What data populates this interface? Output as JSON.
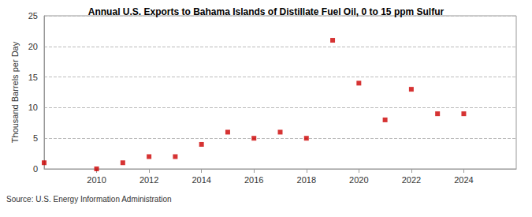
{
  "chart_data": {
    "type": "scatter",
    "title": "Annual U.S. Exports to Bahama Islands of Distillate Fuel Oil, 0 to 15 ppm Sulfur",
    "y_label": "Thousand Barrels per Day",
    "source": "Source: U.S. Energy Information Administration",
    "x": [
      2008,
      2010,
      2011,
      2012,
      2013,
      2014,
      2015,
      2016,
      2017,
      2018,
      2019,
      2020,
      2021,
      2022,
      2023,
      2024
    ],
    "values": [
      1,
      0,
      1,
      2,
      2,
      4,
      6,
      5,
      6,
      5,
      21,
      14,
      8,
      13,
      9,
      9
    ],
    "color": "#cc0000",
    "marker": "square",
    "xlim": [
      2008,
      2026
    ],
    "xticks": [
      2010,
      2012,
      2014,
      2016,
      2018,
      2020,
      2022,
      2024
    ],
    "ylim": [
      0,
      25
    ],
    "yticks": [
      0,
      5,
      10,
      15,
      20,
      25
    ],
    "grid": true
  }
}
